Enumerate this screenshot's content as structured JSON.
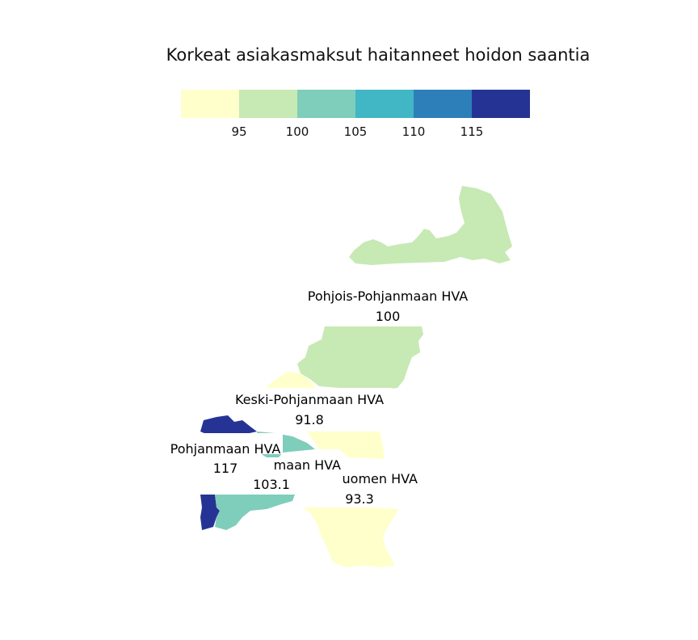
{
  "title": "Korkeat asiakasmaksut haitanneet hoidon saantia",
  "legend": {
    "colors": [
      "#ffffcc",
      "#c7e9b4",
      "#7fcdbb",
      "#41b6c4",
      "#2c7fb8",
      "#253494"
    ],
    "ticks": [
      "95",
      "100",
      "105",
      "110",
      "115"
    ]
  },
  "regions": [
    {
      "name": "Pohjois-Pohjanmaan HVA",
      "value": "100",
      "color": "#c7e9b4"
    },
    {
      "name": "Keski-Pohjanmaan HVA",
      "value": "91.8",
      "color": "#ffffcc"
    },
    {
      "name": "Pohjanmaan HVA",
      "value": "117",
      "color": "#253494"
    },
    {
      "name": "Etelä-Pohjanmaan HVA",
      "value": "103.1",
      "color": "#7fcdbb"
    },
    {
      "name": "Länsi-Uudenmaan ja Etelä-Pohjanmaan Länsi-Suomen HVA",
      "value": "93.3",
      "color": "#ffffcc"
    }
  ],
  "visible_label_text": {
    "r0": "Pohjois-Pohjanmaan HVA",
    "r1": "Keski-Pohjanmaan HVA",
    "r2": "Pohjanmaan HVA",
    "r3": "maan HVA",
    "r4": "uomen HVA"
  }
}
